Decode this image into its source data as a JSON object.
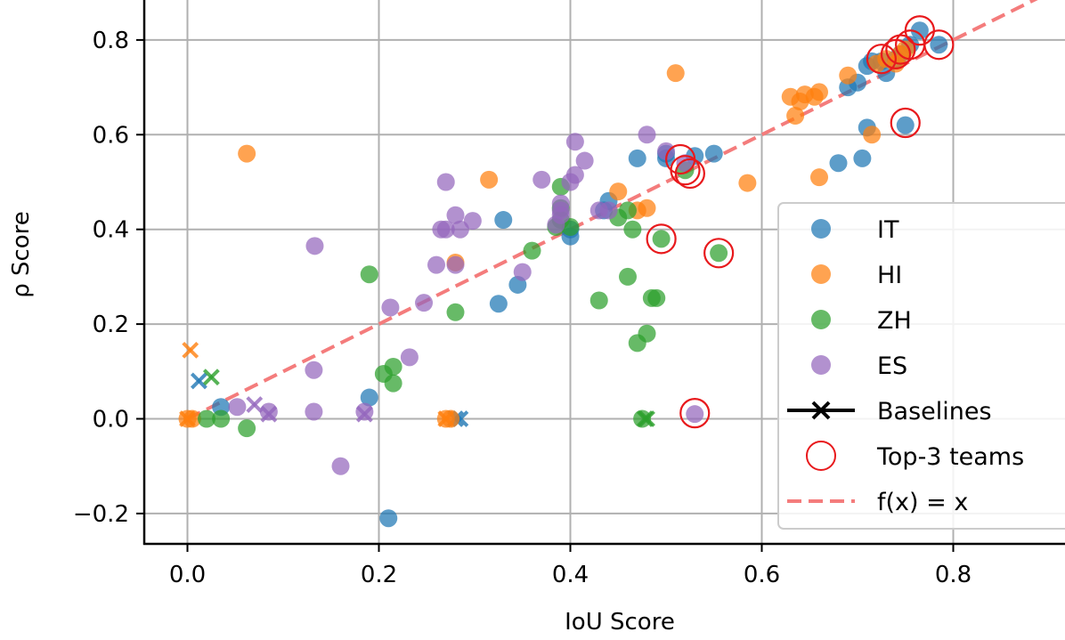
{
  "chart_data": {
    "type": "scatter",
    "xlabel": "IoU Score",
    "ylabel": "ρ Score",
    "xlim": [
      -0.07,
      0.91
    ],
    "ylim": [
      -0.265,
      0.885
    ],
    "xticks": [
      0.0,
      0.2,
      0.4,
      0.6,
      0.8
    ],
    "yticks": [
      -0.2,
      0.0,
      0.2,
      0.4,
      0.6,
      0.8
    ],
    "xtick_labels": [
      "0.0",
      "0.2",
      "0.4",
      "0.6",
      "0.8"
    ],
    "ytick_labels": [
      "−0.2",
      "0.0",
      "0.2",
      "0.4",
      "0.6",
      "0.8"
    ],
    "grid": true,
    "legend_position": "right",
    "series": [
      {
        "name": "IT",
        "color": "#1f77b4",
        "points": [
          [
            0.21,
            -0.21
          ],
          [
            0.19,
            0.045
          ],
          [
            0.035,
            0.025
          ],
          [
            0.325,
            0.243
          ],
          [
            0.345,
            0.283
          ],
          [
            0.33,
            0.42
          ],
          [
            0.4,
            0.385
          ],
          [
            0.4,
            0.4
          ],
          [
            0.44,
            0.46
          ],
          [
            0.435,
            0.44
          ],
          [
            0.47,
            0.55
          ],
          [
            0.5,
            0.55
          ],
          [
            0.53,
            0.555
          ],
          [
            0.55,
            0.56
          ],
          [
            0.5,
            0.56
          ],
          [
            0.68,
            0.54
          ],
          [
            0.705,
            0.55
          ],
          [
            0.71,
            0.615
          ],
          [
            0.75,
            0.62
          ],
          [
            0.69,
            0.7
          ],
          [
            0.7,
            0.71
          ],
          [
            0.71,
            0.745
          ],
          [
            0.715,
            0.755
          ],
          [
            0.725,
            0.755
          ],
          [
            0.73,
            0.73
          ],
          [
            0.74,
            0.76
          ],
          [
            0.745,
            0.77
          ],
          [
            0.765,
            0.82
          ],
          [
            0.785,
            0.79
          ],
          [
            0.755,
            0.79
          ]
        ],
        "baselines": [
          [
            0.012,
            0.08
          ],
          [
            0.28,
            0.0
          ],
          [
            0.285,
            0.0
          ]
        ]
      },
      {
        "name": "HI",
        "color": "#ff7f0e",
        "points": [
          [
            0.0,
            0.0
          ],
          [
            0.005,
            0.0
          ],
          [
            0.062,
            0.56
          ],
          [
            0.27,
            0.0
          ],
          [
            0.275,
            0.0
          ],
          [
            0.28,
            0.33
          ],
          [
            0.315,
            0.505
          ],
          [
            0.45,
            0.48
          ],
          [
            0.47,
            0.44
          ],
          [
            0.48,
            0.445
          ],
          [
            0.51,
            0.73
          ],
          [
            0.585,
            0.498
          ],
          [
            0.63,
            0.68
          ],
          [
            0.635,
            0.64
          ],
          [
            0.64,
            0.67
          ],
          [
            0.645,
            0.685
          ],
          [
            0.655,
            0.68
          ],
          [
            0.66,
            0.69
          ],
          [
            0.66,
            0.51
          ],
          [
            0.69,
            0.725
          ],
          [
            0.715,
            0.6
          ],
          [
            0.72,
            0.75
          ],
          [
            0.73,
            0.76
          ],
          [
            0.745,
            0.77
          ],
          [
            0.75,
            0.78
          ],
          [
            0.74,
            0.75
          ]
        ],
        "baselines": [
          [
            0.003,
            0.145
          ],
          [
            0.0,
            0.0
          ],
          [
            0.27,
            0.0
          ]
        ]
      },
      {
        "name": "ZH",
        "color": "#2ca02c",
        "points": [
          [
            0.02,
            0.0
          ],
          [
            0.035,
            0.0
          ],
          [
            0.062,
            -0.02
          ],
          [
            0.19,
            0.305
          ],
          [
            0.205,
            0.095
          ],
          [
            0.215,
            0.075
          ],
          [
            0.215,
            0.11
          ],
          [
            0.28,
            0.225
          ],
          [
            0.36,
            0.355
          ],
          [
            0.385,
            0.405
          ],
          [
            0.39,
            0.49
          ],
          [
            0.39,
            0.445
          ],
          [
            0.39,
            0.42
          ],
          [
            0.4,
            0.405
          ],
          [
            0.43,
            0.25
          ],
          [
            0.45,
            0.425
          ],
          [
            0.46,
            0.3
          ],
          [
            0.46,
            0.44
          ],
          [
            0.465,
            0.4
          ],
          [
            0.47,
            0.16
          ],
          [
            0.475,
            0.0
          ],
          [
            0.48,
            0.18
          ],
          [
            0.485,
            0.255
          ],
          [
            0.49,
            0.255
          ],
          [
            0.495,
            0.38
          ],
          [
            0.52,
            0.525
          ],
          [
            0.555,
            0.35
          ]
        ],
        "baselines": [
          [
            0.025,
            0.088
          ],
          [
            0.478,
            0.0
          ],
          [
            0.48,
            0.0
          ]
        ]
      },
      {
        "name": "ES",
        "color": "#9467bd",
        "points": [
          [
            0.052,
            0.025
          ],
          [
            0.085,
            0.015
          ],
          [
            0.132,
            0.103
          ],
          [
            0.132,
            0.015
          ],
          [
            0.133,
            0.365
          ],
          [
            0.16,
            -0.1
          ],
          [
            0.185,
            0.015
          ],
          [
            0.212,
            0.235
          ],
          [
            0.232,
            0.13
          ],
          [
            0.247,
            0.245
          ],
          [
            0.26,
            0.325
          ],
          [
            0.265,
            0.4
          ],
          [
            0.27,
            0.4
          ],
          [
            0.27,
            0.5
          ],
          [
            0.28,
            0.43
          ],
          [
            0.28,
            0.325
          ],
          [
            0.285,
            0.4
          ],
          [
            0.298,
            0.418
          ],
          [
            0.35,
            0.31
          ],
          [
            0.37,
            0.505
          ],
          [
            0.385,
            0.41
          ],
          [
            0.39,
            0.455
          ],
          [
            0.39,
            0.44
          ],
          [
            0.39,
            0.43
          ],
          [
            0.4,
            0.5
          ],
          [
            0.405,
            0.515
          ],
          [
            0.405,
            0.585
          ],
          [
            0.415,
            0.545
          ],
          [
            0.43,
            0.44
          ],
          [
            0.44,
            0.44
          ],
          [
            0.48,
            0.6
          ],
          [
            0.5,
            0.565
          ],
          [
            0.52,
            0.54
          ],
          [
            0.53,
            0.01
          ]
        ],
        "baselines": [
          [
            0.07,
            0.03
          ],
          [
            0.085,
            0.01
          ],
          [
            0.185,
            0.01
          ]
        ]
      }
    ],
    "top3_teams": [
      [
        0.765,
        0.82
      ],
      [
        0.785,
        0.79
      ],
      [
        0.755,
        0.79
      ],
      [
        0.745,
        0.78
      ],
      [
        0.74,
        0.77
      ],
      [
        0.725,
        0.76
      ],
      [
        0.75,
        0.625
      ],
      [
        0.515,
        0.548
      ],
      [
        0.52,
        0.525
      ],
      [
        0.525,
        0.518
      ],
      [
        0.495,
        0.38
      ],
      [
        0.555,
        0.35
      ],
      [
        0.53,
        0.012
      ]
    ],
    "reference_line": {
      "label": "f(x) = x",
      "color": "#f47c7c",
      "style": "dashed",
      "slope": 1,
      "intercept": 0
    },
    "legend": [
      "IT",
      "HI",
      "ZH",
      "ES",
      "Baselines",
      "Top-3 teams",
      "f(x) = x"
    ]
  }
}
